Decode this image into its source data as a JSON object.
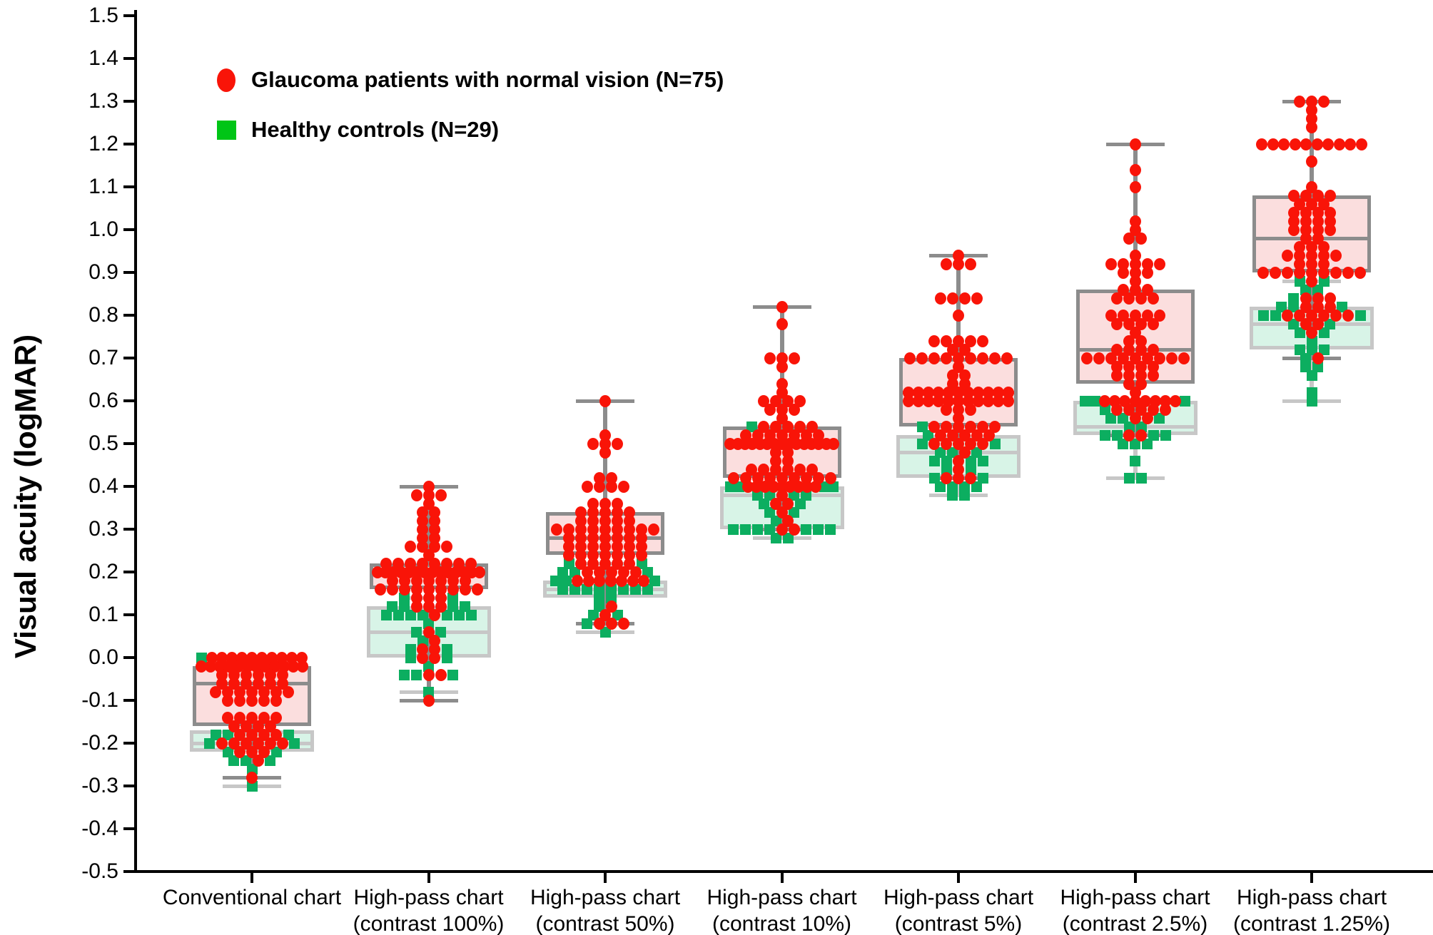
{
  "chart_data": {
    "type": "box-scatter",
    "title": "",
    "ylabel": "Visual acuity (logMAR)",
    "xlabel": "",
    "ylim": [
      -0.5,
      1.5
    ],
    "ytick_step": 0.1,
    "grid": false,
    "legend_position": "top-left",
    "yticks": [
      "1.5",
      "1.4",
      "1.3",
      "1.2",
      "1.1",
      "1.0",
      "0.9",
      "0.8",
      "0.7",
      "0.6",
      "0.5",
      "0.4",
      "0.3",
      "0.2",
      "0.1",
      "0.0",
      "-0.1",
      "-0.2",
      "-0.3",
      "-0.4",
      "-0.5"
    ],
    "legend": [
      {
        "label": "Glaucoma patients with normal vision (N=75)",
        "marker": "circle",
        "color": "#f91408"
      },
      {
        "label": "Healthy controls (N=29)",
        "marker": "square",
        "color": "#00c516"
      }
    ],
    "style": {
      "glaucoma": {
        "marker_color": "#f91408",
        "box_fill": "#fbdede",
        "box_border": "#8c8c8c"
      },
      "healthy": {
        "marker_color": "#0cae60",
        "box_fill": "#d8f4e7",
        "box_border": "#c7c7c7"
      },
      "axis_color": "#000000"
    },
    "categories": [
      {
        "label": [
          "Conventional chart"
        ],
        "glaucoma": {
          "box": {
            "low": -0.28,
            "q1": -0.16,
            "median": -0.06,
            "q3": -0.02,
            "high": 0.0
          },
          "points": [
            [
              0.0,
              10
            ],
            [
              -0.02,
              12
            ],
            [
              -0.04,
              6
            ],
            [
              -0.06,
              6
            ],
            [
              -0.08,
              7
            ],
            [
              -0.1,
              5
            ],
            [
              -0.14,
              5
            ],
            [
              -0.16,
              4
            ],
            [
              -0.18,
              4
            ],
            [
              -0.2,
              6
            ],
            [
              -0.22,
              3
            ],
            [
              -0.24,
              1
            ],
            [
              -0.28,
              1
            ]
          ]
        },
        "healthy": {
          "box": {
            "low": -0.3,
            "q1": -0.22,
            "median": -0.2,
            "q3": -0.17,
            "high": 0.0
          },
          "points": [
            [
              0.0,
              1
            ],
            [
              -0.18,
              3
            ],
            [
              -0.2,
              2
            ],
            [
              -0.22,
              2
            ],
            [
              -0.24,
              3
            ],
            [
              -0.26,
              1
            ],
            [
              -0.3,
              1
            ]
          ]
        }
      },
      {
        "label": [
          "High-pass chart",
          "(contrast 100%)"
        ],
        "glaucoma": {
          "box": {
            "low": -0.1,
            "q1": 0.16,
            "median": 0.2,
            "q3": 0.22,
            "high": 0.4
          },
          "points": [
            [
              0.4,
              1
            ],
            [
              0.38,
              3
            ],
            [
              0.36,
              1
            ],
            [
              0.34,
              2
            ],
            [
              0.32,
              2
            ],
            [
              0.3,
              2
            ],
            [
              0.28,
              2
            ],
            [
              0.26,
              4
            ],
            [
              0.24,
              1
            ],
            [
              0.22,
              8
            ],
            [
              0.2,
              14
            ],
            [
              0.18,
              7
            ],
            [
              0.16,
              9
            ],
            [
              0.14,
              3
            ],
            [
              0.12,
              3
            ],
            [
              0.1,
              1
            ],
            [
              0.06,
              1
            ],
            [
              0.04,
              1
            ],
            [
              0.02,
              2
            ],
            [
              0.0,
              2
            ],
            [
              -0.04,
              2
            ],
            [
              -0.1,
              1
            ]
          ]
        },
        "healthy": {
          "box": {
            "low": -0.08,
            "q1": 0.0,
            "median": 0.06,
            "q3": 0.12,
            "high": 0.14
          },
          "points": [
            [
              0.14,
              2
            ],
            [
              0.12,
              4
            ],
            [
              0.1,
              7
            ],
            [
              0.08,
              1
            ],
            [
              0.06,
              2
            ],
            [
              0.04,
              1
            ],
            [
              0.02,
              2
            ],
            [
              0.0,
              2
            ],
            [
              -0.02,
              1
            ],
            [
              -0.04,
              3
            ],
            [
              -0.08,
              1
            ]
          ]
        }
      },
      {
        "label": [
          "High-pass chart",
          "(contrast 50%)"
        ],
        "glaucoma": {
          "box": {
            "low": 0.08,
            "q1": 0.24,
            "median": 0.28,
            "q3": 0.34,
            "high": 0.6
          },
          "points": [
            [
              0.6,
              1
            ],
            [
              0.52,
              1
            ],
            [
              0.5,
              3
            ],
            [
              0.48,
              1
            ],
            [
              0.42,
              2
            ],
            [
              0.4,
              4
            ],
            [
              0.36,
              3
            ],
            [
              0.34,
              5
            ],
            [
              0.32,
              5
            ],
            [
              0.3,
              9
            ],
            [
              0.28,
              7
            ],
            [
              0.26,
              7
            ],
            [
              0.24,
              7
            ],
            [
              0.22,
              5
            ],
            [
              0.2,
              5
            ],
            [
              0.18,
              7
            ],
            [
              0.12,
              1
            ],
            [
              0.1,
              1
            ],
            [
              0.08,
              3
            ]
          ]
        },
        "healthy": {
          "box": {
            "low": 0.06,
            "q1": 0.14,
            "median": 0.16,
            "q3": 0.18,
            "high": 0.22
          },
          "points": [
            [
              0.22,
              2
            ],
            [
              0.2,
              3
            ],
            [
              0.18,
              3
            ],
            [
              0.16,
              8
            ],
            [
              0.14,
              2
            ],
            [
              0.12,
              1
            ],
            [
              0.1,
              2
            ],
            [
              0.08,
              1
            ],
            [
              0.06,
              1
            ]
          ]
        }
      },
      {
        "label": [
          "High-pass chart",
          "(contrast 10%)"
        ],
        "glaucoma": {
          "box": {
            "low": 0.3,
            "q1": 0.42,
            "median": 0.5,
            "q3": 0.54,
            "high": 0.82
          },
          "points": [
            [
              0.82,
              1
            ],
            [
              0.78,
              1
            ],
            [
              0.7,
              3
            ],
            [
              0.68,
              1
            ],
            [
              0.64,
              1
            ],
            [
              0.62,
              1
            ],
            [
              0.6,
              4
            ],
            [
              0.58,
              3
            ],
            [
              0.56,
              1
            ],
            [
              0.54,
              5
            ],
            [
              0.52,
              7
            ],
            [
              0.5,
              15
            ],
            [
              0.48,
              2
            ],
            [
              0.46,
              2
            ],
            [
              0.44,
              6
            ],
            [
              0.42,
              9
            ],
            [
              0.4,
              9
            ],
            [
              0.38,
              1
            ],
            [
              0.36,
              2
            ],
            [
              0.34,
              1
            ],
            [
              0.32,
              1
            ],
            [
              0.3,
              2
            ]
          ]
        },
        "healthy": {
          "box": {
            "low": 0.28,
            "q1": 0.3,
            "median": 0.38,
            "q3": 0.4,
            "high": 0.54
          },
          "points": [
            [
              0.54,
              1
            ],
            [
              0.4,
              4
            ],
            [
              0.38,
              4
            ],
            [
              0.36,
              2
            ],
            [
              0.34,
              2
            ],
            [
              0.32,
              1
            ],
            [
              0.3,
              7
            ],
            [
              0.28,
              2
            ]
          ]
        }
      },
      {
        "label": [
          "High-pass chart",
          "(contrast 5%)"
        ],
        "glaucoma": {
          "box": {
            "low": 0.42,
            "q1": 0.54,
            "median": 0.62,
            "q3": 0.7,
            "high": 0.94
          },
          "points": [
            [
              0.94,
              1
            ],
            [
              0.92,
              3
            ],
            [
              0.84,
              4
            ],
            [
              0.8,
              1
            ],
            [
              0.74,
              5
            ],
            [
              0.72,
              2
            ],
            [
              0.7,
              9
            ],
            [
              0.68,
              1
            ],
            [
              0.66,
              2
            ],
            [
              0.64,
              2
            ],
            [
              0.62,
              11
            ],
            [
              0.6,
              11
            ],
            [
              0.58,
              3
            ],
            [
              0.56,
              1
            ],
            [
              0.54,
              6
            ],
            [
              0.52,
              5
            ],
            [
              0.5,
              5
            ],
            [
              0.48,
              1
            ],
            [
              0.46,
              1
            ],
            [
              0.44,
              1
            ],
            [
              0.42,
              3
            ]
          ]
        },
        "healthy": {
          "box": {
            "low": 0.38,
            "q1": 0.42,
            "median": 0.48,
            "q3": 0.52,
            "high": 0.54
          },
          "points": [
            [
              0.54,
              1
            ],
            [
              0.52,
              1
            ],
            [
              0.5,
              2
            ],
            [
              0.48,
              3
            ],
            [
              0.46,
              4
            ],
            [
              0.44,
              2
            ],
            [
              0.42,
              2
            ],
            [
              0.4,
              4
            ],
            [
              0.38,
              2
            ]
          ]
        }
      },
      {
        "label": [
          "High-pass chart",
          "(contrast 2.5%)"
        ],
        "glaucoma": {
          "box": {
            "low": 0.52,
            "q1": 0.64,
            "median": 0.72,
            "q3": 0.86,
            "high": 1.2
          },
          "points": [
            [
              1.2,
              1
            ],
            [
              1.14,
              1
            ],
            [
              1.1,
              1
            ],
            [
              1.02,
              1
            ],
            [
              1.0,
              1
            ],
            [
              0.98,
              2
            ],
            [
              0.94,
              1
            ],
            [
              0.92,
              5
            ],
            [
              0.9,
              3
            ],
            [
              0.88,
              1
            ],
            [
              0.86,
              3
            ],
            [
              0.84,
              4
            ],
            [
              0.8,
              5
            ],
            [
              0.78,
              4
            ],
            [
              0.76,
              1
            ],
            [
              0.74,
              2
            ],
            [
              0.72,
              4
            ],
            [
              0.7,
              9
            ],
            [
              0.68,
              4
            ],
            [
              0.66,
              4
            ],
            [
              0.64,
              2
            ],
            [
              0.62,
              1
            ],
            [
              0.6,
              8
            ],
            [
              0.58,
              5
            ],
            [
              0.56,
              2
            ],
            [
              0.52,
              2
            ]
          ]
        },
        "healthy": {
          "box": {
            "low": 0.42,
            "q1": 0.52,
            "median": 0.54,
            "q3": 0.6,
            "high": 0.6
          },
          "points": [
            [
              0.6,
              3
            ],
            [
              0.58,
              1
            ],
            [
              0.56,
              3
            ],
            [
              0.54,
              2
            ],
            [
              0.52,
              4
            ],
            [
              0.5,
              3
            ],
            [
              0.46,
              1
            ],
            [
              0.42,
              2
            ]
          ]
        }
      },
      {
        "label": [
          "High-pass chart",
          "(contrast 1.25%)"
        ],
        "glaucoma": {
          "box": {
            "low": 0.7,
            "q1": 0.9,
            "median": 0.98,
            "q3": 1.08,
            "high": 1.3
          },
          "points": [
            [
              1.3,
              3
            ],
            [
              1.28,
              1
            ],
            [
              1.26,
              1
            ],
            [
              1.24,
              1
            ],
            [
              1.2,
              10
            ],
            [
              1.16,
              1
            ],
            [
              1.1,
              1
            ],
            [
              1.08,
              4
            ],
            [
              1.06,
              3
            ],
            [
              1.04,
              4
            ],
            [
              1.02,
              4
            ],
            [
              1.0,
              4
            ],
            [
              0.98,
              2
            ],
            [
              0.96,
              3
            ],
            [
              0.94,
              5
            ],
            [
              0.92,
              3
            ],
            [
              0.9,
              9
            ],
            [
              0.88,
              1
            ],
            [
              0.84,
              3
            ],
            [
              0.82,
              3
            ],
            [
              0.8,
              6
            ],
            [
              0.78,
              2
            ],
            [
              0.76,
              1
            ],
            [
              0.7,
              1
            ]
          ]
        },
        "healthy": {
          "box": {
            "low": 0.6,
            "q1": 0.72,
            "median": 0.78,
            "q3": 0.82,
            "high": 0.88
          },
          "points": [
            [
              0.88,
              2
            ],
            [
              0.86,
              2
            ],
            [
              0.84,
              1
            ],
            [
              0.82,
              3
            ],
            [
              0.8,
              3
            ],
            [
              0.78,
              2
            ],
            [
              0.76,
              2
            ],
            [
              0.74,
              1
            ],
            [
              0.72,
              3
            ],
            [
              0.7,
              1
            ],
            [
              0.68,
              2
            ],
            [
              0.66,
              1
            ],
            [
              0.62,
              1
            ],
            [
              0.6,
              1
            ]
          ]
        }
      }
    ]
  }
}
